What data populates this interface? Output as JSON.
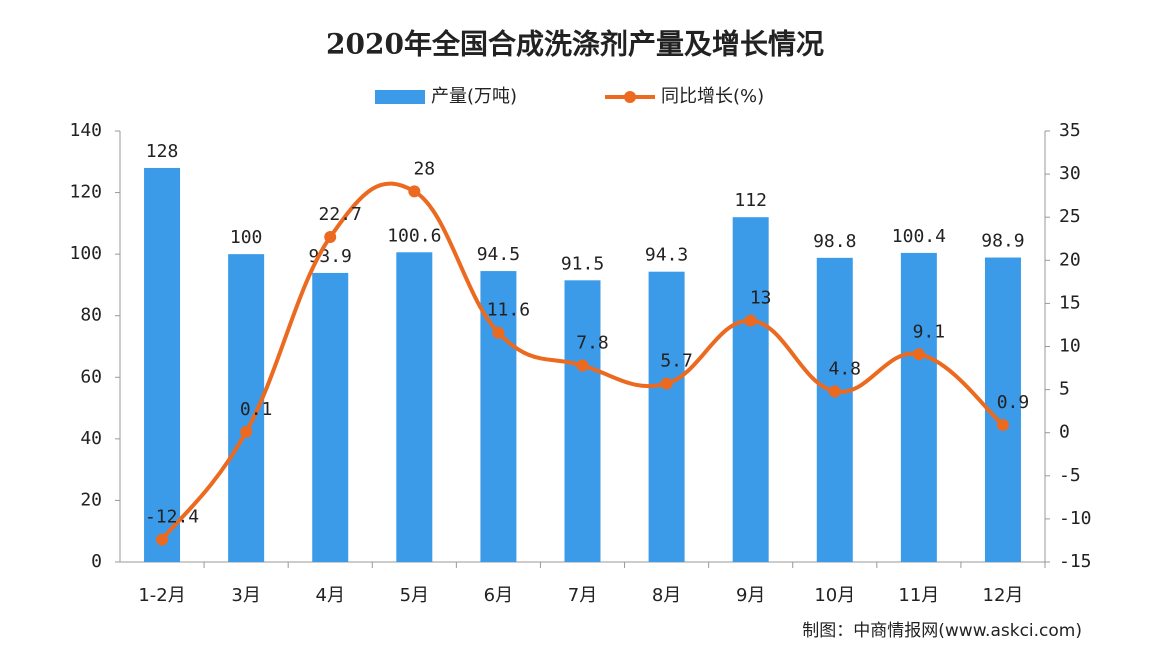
{
  "chart_data": {
    "type": "combo",
    "title": "2020年全国合成洗涤剂产量及增长情况",
    "source": "制图：中商情报网(www.askci.com)",
    "categories": [
      "1-2月",
      "3月",
      "4月",
      "5月",
      "6月",
      "7月",
      "8月",
      "9月",
      "10月",
      "11月",
      "12月"
    ],
    "series": [
      {
        "name": "产量(万吨)",
        "type": "bar",
        "color": "#3c9be9",
        "axis": "y",
        "values": [
          128,
          100,
          93.9,
          100.6,
          94.5,
          91.5,
          94.3,
          112,
          98.8,
          100.4,
          98.9
        ]
      },
      {
        "name": "同比增长(%)",
        "type": "line",
        "color": "#ec6a1f",
        "axis": "y2",
        "values": [
          -12.4,
          0.1,
          22.7,
          28,
          11.6,
          7.8,
          5.7,
          13,
          4.8,
          9.1,
          0.9
        ]
      }
    ],
    "ylim": [
      0,
      140
    ],
    "yticks": [
      0,
      20,
      40,
      60,
      80,
      100,
      120,
      140
    ],
    "y2lim": [
      -15,
      35
    ],
    "y2ticks": [
      -15,
      -10,
      -5,
      0,
      5,
      10,
      15,
      20,
      25,
      30,
      35
    ],
    "grid": false
  }
}
